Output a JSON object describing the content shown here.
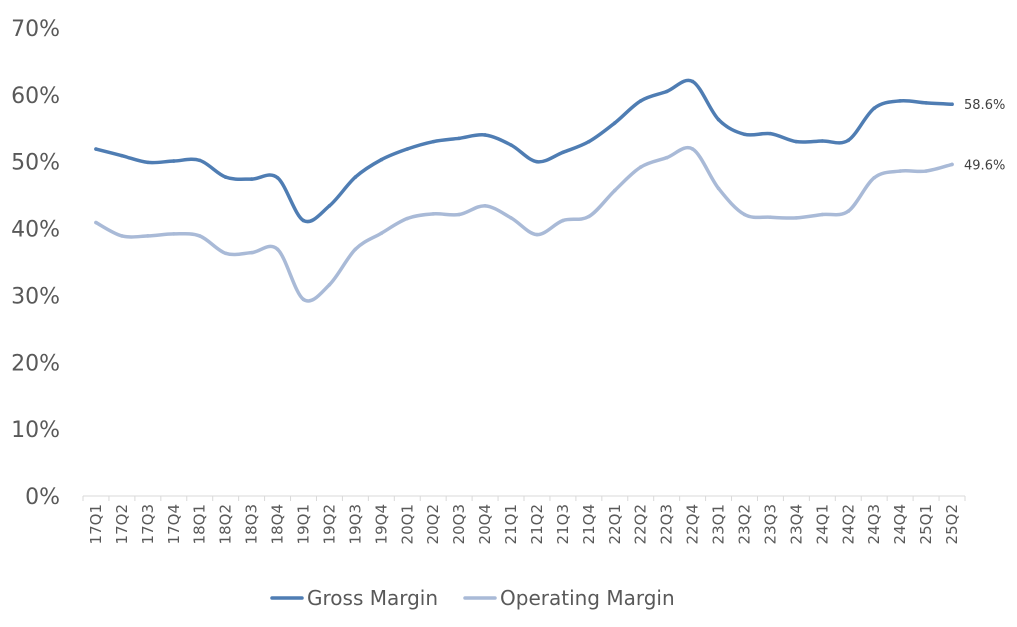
{
  "chart_data": {
    "type": "line",
    "title": "",
    "xlabel": "",
    "ylabel": "",
    "ylim": [
      0,
      70
    ],
    "y_ticks": [
      "0%",
      "10%",
      "20%",
      "30%",
      "40%",
      "50%",
      "60%",
      "70%"
    ],
    "y_tick_values": [
      0,
      10,
      20,
      30,
      40,
      50,
      60,
      70
    ],
    "categories": [
      "17Q1",
      "17Q2",
      "17Q3",
      "17Q4",
      "18Q1",
      "18Q2",
      "18Q3",
      "18Q4",
      "19Q1",
      "19Q2",
      "19Q3",
      "19Q4",
      "20Q1",
      "20Q2",
      "20Q3",
      "20Q4",
      "21Q1",
      "21Q2",
      "21Q3",
      "21Q4",
      "22Q1",
      "22Q2",
      "22Q3",
      "22Q4",
      "23Q1",
      "23Q2",
      "23Q3",
      "23Q4",
      "24Q1",
      "24Q2",
      "24Q3",
      "24Q4",
      "25Q1",
      "25Q2"
    ],
    "series": [
      {
        "name": "Gross Margin",
        "color": "#4f7db3",
        "values": [
          51.9,
          50.9,
          49.9,
          50.1,
          50.2,
          47.7,
          47.4,
          47.6,
          41.2,
          43.4,
          47.7,
          50.3,
          51.9,
          53.0,
          53.5,
          54.0,
          52.5,
          50.0,
          51.4,
          53.0,
          55.8,
          59.1,
          60.5,
          62.0,
          56.3,
          54.1,
          54.2,
          53.0,
          53.1,
          53.2,
          58.0,
          59.1,
          58.8,
          58.6
        ],
        "end_label": "58.6%"
      },
      {
        "name": "Operating Margin",
        "color": "#a9bad7",
        "values": [
          40.9,
          38.9,
          38.9,
          39.2,
          38.9,
          36.3,
          36.4,
          36.9,
          29.4,
          31.6,
          36.9,
          39.3,
          41.5,
          42.2,
          42.1,
          43.4,
          41.6,
          39.1,
          41.2,
          41.8,
          45.7,
          49.2,
          50.6,
          51.9,
          46.0,
          42.1,
          41.7,
          41.6,
          42.1,
          42.6,
          47.6,
          48.6,
          48.6,
          49.6
        ],
        "end_label": "49.6%"
      }
    ],
    "grid": false,
    "legend": "bottom"
  }
}
